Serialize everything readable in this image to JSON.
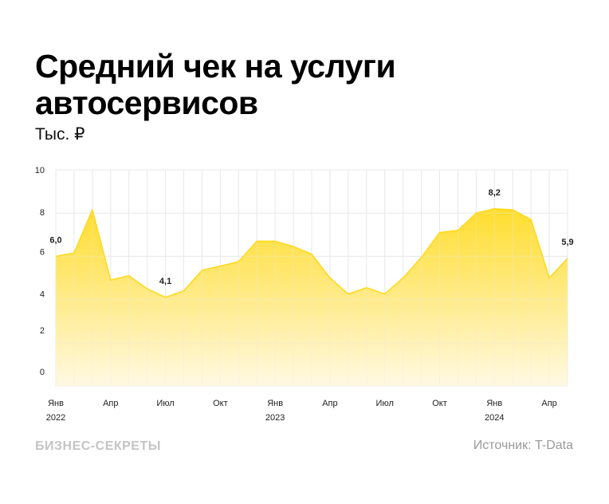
{
  "header": {
    "title": "Средний чек на услуги автосервисов",
    "subtitle": "Тыс. ₽"
  },
  "footer": {
    "brand": "БИЗНЕС-СЕКРЕТЫ",
    "source": "Источник: T-Data"
  },
  "colors": {
    "fill_top": "#FFDD2D",
    "fill_bottom": "#FFF9E3",
    "stroke": "#FFD91F",
    "grid": "#E9E9E9",
    "axis_text": "#222222"
  },
  "chart_data": {
    "type": "area",
    "title": "Средний чек на услуги автосервисов",
    "subtitle": "Тыс. ₽",
    "xlabel": "",
    "ylabel": "Тыс. ₽",
    "ylim": [
      0,
      10
    ],
    "yticks": [
      0,
      2,
      4,
      6,
      8,
      10
    ],
    "grid": true,
    "legend": "none",
    "x": [
      "Янв 2022",
      "Фев 2022",
      "Мар 2022",
      "Апр 2022",
      "Май 2022",
      "Июн 2022",
      "Июл 2022",
      "Авг 2022",
      "Сен 2022",
      "Окт 2022",
      "Ноя 2022",
      "Дек 2022",
      "Янв 2023",
      "Фев 2023",
      "Мар 2023",
      "Апр 2023",
      "Май 2023",
      "Июн 2023",
      "Июл 2023",
      "Авг 2023",
      "Сен 2023",
      "Окт 2023",
      "Ноя 2023",
      "Дек 2023",
      "Янв 2024",
      "Фев 2024",
      "Мар 2024",
      "Апр 2024",
      "Май 2024"
    ],
    "values": [
      6.0,
      6.15,
      8.15,
      4.9,
      5.1,
      4.5,
      4.1,
      4.4,
      5.35,
      5.55,
      5.75,
      6.7,
      6.7,
      6.45,
      6.1,
      5.0,
      4.25,
      4.55,
      4.25,
      5.0,
      5.95,
      7.1,
      7.2,
      8.0,
      8.2,
      8.15,
      7.7,
      5.0,
      5.9
    ],
    "xtick_labels": [
      {
        "index": 0,
        "month": "Янв",
        "year": "2022"
      },
      {
        "index": 3,
        "month": "Апр",
        "year": ""
      },
      {
        "index": 6,
        "month": "Июл",
        "year": ""
      },
      {
        "index": 9,
        "month": "Окт",
        "year": ""
      },
      {
        "index": 12,
        "month": "Янв",
        "year": "2023"
      },
      {
        "index": 15,
        "month": "Апр",
        "year": ""
      },
      {
        "index": 18,
        "month": "Июл",
        "year": ""
      },
      {
        "index": 21,
        "month": "Окт",
        "year": ""
      },
      {
        "index": 24,
        "month": "Янв",
        "year": "2024"
      },
      {
        "index": 27,
        "month": "Апр",
        "year": ""
      }
    ],
    "annotations": [
      {
        "index": 0,
        "label": "6,0"
      },
      {
        "index": 6,
        "label": "4,1"
      },
      {
        "index": 24,
        "label": "8,2"
      },
      {
        "index": 28,
        "label": "5,9"
      }
    ]
  }
}
